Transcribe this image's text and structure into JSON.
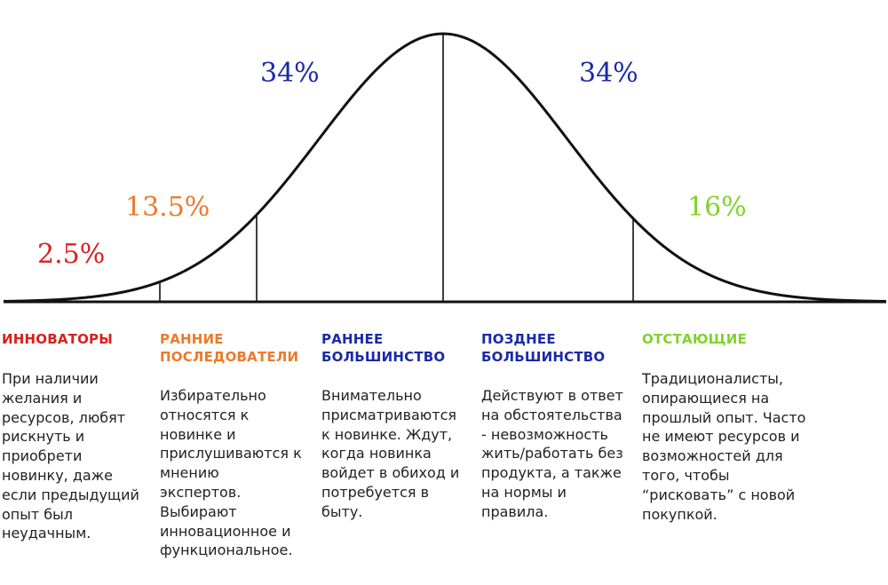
{
  "colors": {
    "innovators": "#d9201e",
    "early_adopters": "#ec7a2c",
    "early_majority": "#1a2aa8",
    "late_majority": "#1a2aa8",
    "laggards": "#7fd32c",
    "curve": "#111111"
  },
  "percentages": {
    "innovators": "2.5%",
    "early_adopters": "13.5%",
    "early_majority": "34%",
    "late_majority": "34%",
    "laggards": "16%"
  },
  "columns": {
    "innovators": {
      "title": "ИННОВАТОРЫ",
      "text": "При наличии желания и ресурсов, любят рискнуть и приобрети новинку, даже если предыдущий опыт был неудачным."
    },
    "early_adopters": {
      "title": "РАННИЕ ПОСЛЕДОВАТЕЛИ",
      "text": "Избирательно относятся к новинке и прислушиваются к мнению экспертов. Выбирают инновационное и функциональное."
    },
    "early_majority": {
      "title": "РАННЕЕ БОЛЬШИНСТВО",
      "text": "Внимательно присматриваются к новинке. Ждут, когда новинка войдет в обиход и потребуется в быту."
    },
    "late_majority": {
      "title": "ПОЗДНЕЕ БОЛЬШИНСТВО",
      "text": "Действуют в ответ на обстоятельства - невозможность жить/работать без продукта, а также на нормы и правила."
    },
    "laggards": {
      "title": "ОТСТАЮЩИЕ",
      "text": "Традиционалисты, опирающиеся на прошлый опыт. Часто не имеют ресурсов и возможностей для того, чтобы “рисковать” с новой покупкой."
    }
  }
}
